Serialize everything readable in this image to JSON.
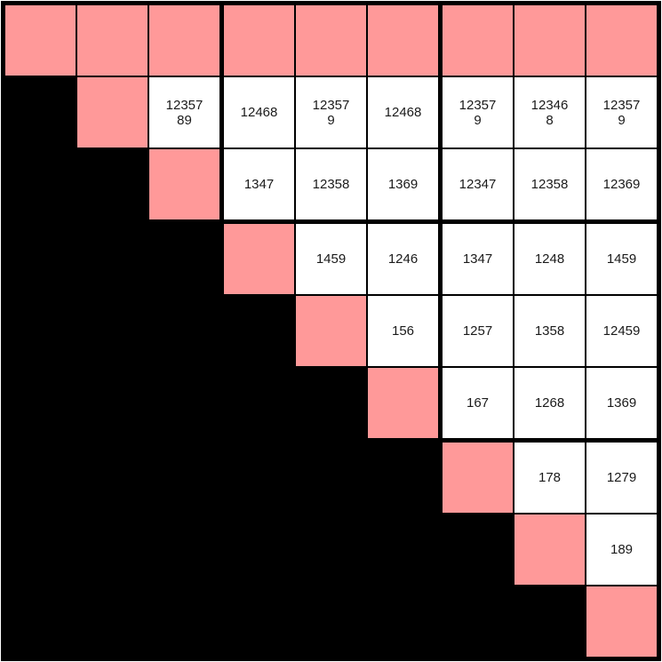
{
  "colors": {
    "page_background": "#ffffff",
    "grid_line": "#000000",
    "pink": "#ff9999",
    "black": "#000000",
    "white": "#ffffff",
    "text": "#1a1a1a"
  },
  "grid": {
    "rows": 9,
    "cols": 9,
    "cell_types": {
      "B": "black",
      "P": "pink"
    },
    "cells": [
      [
        "P",
        "P",
        "P",
        "P",
        "P",
        "P",
        "P",
        "P",
        "P"
      ],
      [
        "B",
        "P",
        "12357\n89",
        "12468",
        "12357\n9",
        "12468",
        "12357\n9",
        "12346\n8",
        "12357\n9"
      ],
      [
        "B",
        "B",
        "P",
        "1347",
        "12358",
        "1369",
        "12347",
        "12358",
        "12369"
      ],
      [
        "B",
        "B",
        "B",
        "P",
        "1459",
        "1246",
        "1347",
        "1248",
        "1459"
      ],
      [
        "B",
        "B",
        "B",
        "B",
        "P",
        "156",
        "1257",
        "1358",
        "12459"
      ],
      [
        "B",
        "B",
        "B",
        "B",
        "B",
        "P",
        "167",
        "1268",
        "1369"
      ],
      [
        "B",
        "B",
        "B",
        "B",
        "B",
        "B",
        "P",
        "178",
        "1279"
      ],
      [
        "B",
        "B",
        "B",
        "B",
        "B",
        "B",
        "B",
        "P",
        "189"
      ],
      [
        "B",
        "B",
        "B",
        "B",
        "B",
        "B",
        "B",
        "B",
        "P"
      ]
    ]
  }
}
